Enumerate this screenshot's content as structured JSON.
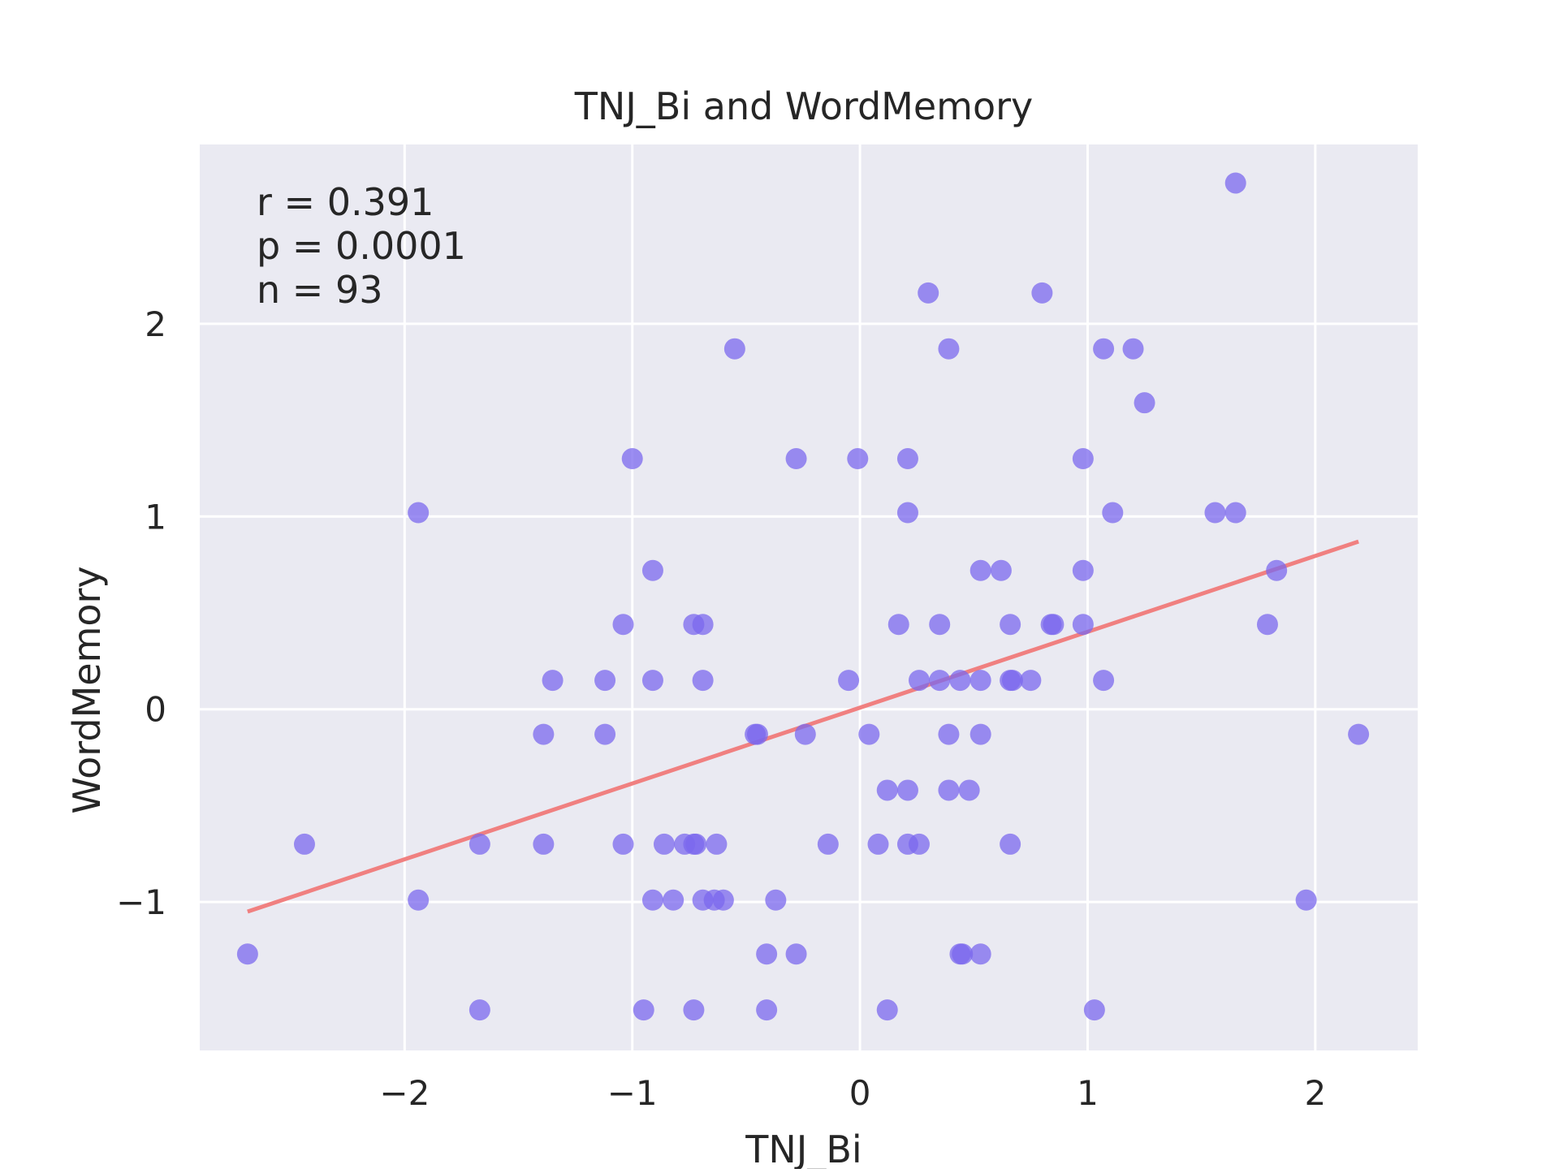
{
  "chart_data": {
    "type": "scatter",
    "title": "TNJ_Bi and WordMemory",
    "xlabel": "TNJ_Bi",
    "ylabel": "WordMemory",
    "xlim": [
      -2.9,
      2.45
    ],
    "ylim": [
      -1.77,
      2.93
    ],
    "xticks": [
      -2,
      -1,
      0,
      1,
      2
    ],
    "xtick_labels": [
      "−2",
      "−1",
      "0",
      "1",
      "2"
    ],
    "yticks": [
      -1,
      0,
      1,
      2
    ],
    "ytick_labels": [
      "−1",
      "0",
      "1",
      "2"
    ],
    "grid": true,
    "background": "#eaeaf2",
    "point_color": "#7b68ee",
    "line_color": "#f08080",
    "annotations": [
      "r = 0.391",
      "p = 0.0001",
      "n = 93"
    ],
    "fit_line": {
      "x": [
        -2.69,
        2.19
      ],
      "y": [
        -1.05,
        0.87
      ]
    },
    "points": [
      {
        "x": -2.69,
        "y": -1.27
      },
      {
        "x": -2.44,
        "y": -0.7
      },
      {
        "x": -1.94,
        "y": 1.02
      },
      {
        "x": -1.94,
        "y": -0.99
      },
      {
        "x": -1.67,
        "y": -0.7
      },
      {
        "x": -1.67,
        "y": -1.56
      },
      {
        "x": -1.39,
        "y": -0.13
      },
      {
        "x": -1.39,
        "y": -0.7
      },
      {
        "x": -1.35,
        "y": 0.15
      },
      {
        "x": -1.12,
        "y": 0.15
      },
      {
        "x": -1.12,
        "y": -0.13
      },
      {
        "x": -1.04,
        "y": 0.44
      },
      {
        "x": -1.04,
        "y": -0.7
      },
      {
        "x": -1.0,
        "y": 1.3
      },
      {
        "x": -0.95,
        "y": -1.56
      },
      {
        "x": -0.91,
        "y": 0.72
      },
      {
        "x": -0.91,
        "y": 0.15
      },
      {
        "x": -0.91,
        "y": -0.99
      },
      {
        "x": -0.86,
        "y": -0.7
      },
      {
        "x": -0.82,
        "y": -0.99
      },
      {
        "x": -0.77,
        "y": -0.7
      },
      {
        "x": -0.73,
        "y": -0.7
      },
      {
        "x": -0.72,
        "y": -0.7
      },
      {
        "x": -0.73,
        "y": 0.44
      },
      {
        "x": -0.73,
        "y": -1.56
      },
      {
        "x": -0.69,
        "y": 0.44
      },
      {
        "x": -0.69,
        "y": 0.15
      },
      {
        "x": -0.69,
        "y": -0.99
      },
      {
        "x": -0.64,
        "y": -0.99
      },
      {
        "x": -0.63,
        "y": -0.7
      },
      {
        "x": -0.6,
        "y": -0.99
      },
      {
        "x": -0.55,
        "y": 1.87
      },
      {
        "x": -0.46,
        "y": -0.13
      },
      {
        "x": -0.45,
        "y": -0.13
      },
      {
        "x": -0.41,
        "y": -1.27
      },
      {
        "x": -0.41,
        "y": -1.56
      },
      {
        "x": -0.37,
        "y": -0.99
      },
      {
        "x": -0.28,
        "y": 1.3
      },
      {
        "x": -0.28,
        "y": -1.27
      },
      {
        "x": -0.24,
        "y": -0.13
      },
      {
        "x": -0.14,
        "y": -0.7
      },
      {
        "x": -0.05,
        "y": 0.15
      },
      {
        "x": -0.01,
        "y": 1.3
      },
      {
        "x": 0.04,
        "y": -0.13
      },
      {
        "x": 0.08,
        "y": -0.7
      },
      {
        "x": 0.12,
        "y": -0.42
      },
      {
        "x": 0.12,
        "y": -1.56
      },
      {
        "x": 0.17,
        "y": 0.44
      },
      {
        "x": 0.21,
        "y": 1.3
      },
      {
        "x": 0.21,
        "y": 1.02
      },
      {
        "x": 0.21,
        "y": -0.42
      },
      {
        "x": 0.21,
        "y": -0.7
      },
      {
        "x": 0.26,
        "y": 0.15
      },
      {
        "x": 0.26,
        "y": -0.7
      },
      {
        "x": 0.3,
        "y": 2.16
      },
      {
        "x": 0.35,
        "y": 0.44
      },
      {
        "x": 0.35,
        "y": 0.15
      },
      {
        "x": 0.39,
        "y": 1.87
      },
      {
        "x": 0.39,
        "y": -0.13
      },
      {
        "x": 0.39,
        "y": -0.42
      },
      {
        "x": 0.44,
        "y": 0.15
      },
      {
        "x": 0.44,
        "y": -1.27
      },
      {
        "x": 0.45,
        "y": -1.27
      },
      {
        "x": 0.48,
        "y": -0.42
      },
      {
        "x": 0.53,
        "y": 0.72
      },
      {
        "x": 0.53,
        "y": 0.15
      },
      {
        "x": 0.53,
        "y": -0.13
      },
      {
        "x": 0.53,
        "y": -1.27
      },
      {
        "x": 0.62,
        "y": 0.72
      },
      {
        "x": 0.66,
        "y": 0.44
      },
      {
        "x": 0.66,
        "y": 0.15
      },
      {
        "x": 0.67,
        "y": 0.15
      },
      {
        "x": 0.66,
        "y": -0.7
      },
      {
        "x": 0.75,
        "y": 0.15
      },
      {
        "x": 0.8,
        "y": 2.16
      },
      {
        "x": 0.84,
        "y": 0.44
      },
      {
        "x": 0.85,
        "y": 0.44
      },
      {
        "x": 0.98,
        "y": 1.3
      },
      {
        "x": 0.98,
        "y": 0.72
      },
      {
        "x": 0.98,
        "y": 0.44
      },
      {
        "x": 1.03,
        "y": -1.56
      },
      {
        "x": 1.07,
        "y": 1.87
      },
      {
        "x": 1.07,
        "y": 0.15
      },
      {
        "x": 1.11,
        "y": 1.02
      },
      {
        "x": 1.2,
        "y": 1.87
      },
      {
        "x": 1.25,
        "y": 1.59
      },
      {
        "x": 1.56,
        "y": 1.02
      },
      {
        "x": 1.65,
        "y": 2.73
      },
      {
        "x": 1.65,
        "y": 1.02
      },
      {
        "x": 1.79,
        "y": 0.44
      },
      {
        "x": 1.83,
        "y": 0.72
      },
      {
        "x": 1.96,
        "y": -0.99
      },
      {
        "x": 2.19,
        "y": -0.13
      }
    ]
  }
}
